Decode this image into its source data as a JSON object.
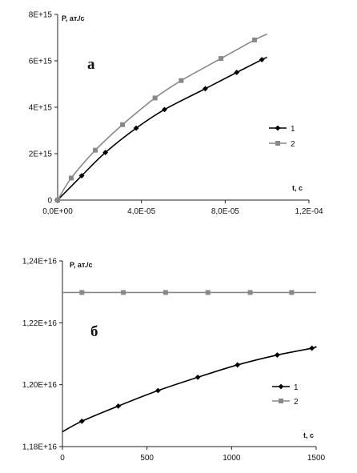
{
  "chart_data": [
    {
      "type": "line",
      "panel_label": "а",
      "ylabel": "P, ат./с",
      "xlabel": "t, c",
      "xlim": [
        0,
        0.00012
      ],
      "ylim": [
        0,
        8000000000000000.0
      ],
      "x_ticks": [
        "0,0E+00",
        "4,0E-05",
        "8,0E-05",
        "1,2E-04"
      ],
      "y_ticks": [
        "0",
        "2E+15",
        "4E+15",
        "6E+15",
        "8E+15"
      ],
      "grid": false,
      "legend_position": "center-right",
      "series": [
        {
          "name": "1",
          "color": "#000000",
          "marker": "diamond",
          "x": [
            0,
            1.15e-05,
            2.28e-05,
            3.75e-05,
            5.1e-05,
            7.05e-05,
            8.55e-05,
            9.75e-05
          ],
          "y": [
            0,
            1050000000000000.0,
            2050000000000000.0,
            3100000000000000.0,
            3900000000000000.0,
            4800000000000000.0,
            5500000000000000.0,
            6050000000000000.0
          ]
        },
        {
          "name": "2",
          "color": "#888888",
          "marker": "square",
          "x": [
            0,
            6.5e-06,
            1.8e-05,
            3.1e-05,
            4.65e-05,
            5.9e-05,
            7.8e-05,
            9.4e-05
          ],
          "y": [
            0,
            950000000000000.0,
            2150000000000000.0,
            3250000000000000.0,
            4400000000000000.0,
            5150000000000000.0,
            6100000000000000.0,
            6900000000000000.0
          ]
        }
      ],
      "curve_end": {
        "x": 0.0001,
        "series_1_y": 6150000000000000.0,
        "series_2_y": 7150000000000000.0
      }
    },
    {
      "type": "line",
      "panel_label": "б",
      "ylabel": "P, ат./с",
      "xlabel": "t, c",
      "xlim": [
        0,
        1500
      ],
      "ylim": [
        1.18e+16,
        1.24e+16
      ],
      "x_ticks": [
        "0",
        "500",
        "1000",
        "1500"
      ],
      "y_ticks": [
        "1,18E+16",
        "1,20E+16",
        "1,22E+16",
        "1,24E+16"
      ],
      "grid": false,
      "legend_position": "bottom-right",
      "series": [
        {
          "name": "1",
          "color": "#000000",
          "marker": "diamond",
          "x": [
            115,
            330,
            565,
            800,
            1035,
            1270,
            1475
          ],
          "y": [
            1.1882e+16,
            1.1931e+16,
            1.1981e+16,
            1.2024e+16,
            1.2064e+16,
            1.2096e+16,
            1.2118e+16
          ]
        },
        {
          "name": "2",
          "color": "#888888",
          "marker": "square",
          "x": [
            115,
            360,
            610,
            860,
            1110,
            1355
          ],
          "y": [
            1.2298e+16,
            1.2298e+16,
            1.2298e+16,
            1.2298e+16,
            1.2298e+16,
            1.2298e+16
          ]
        }
      ],
      "curve_range": {
        "x_start": 0,
        "x_end": 1500,
        "series_1_start_y": 1.1848e+16,
        "series_1_end_y": 1.2124e+16,
        "series_2_y": 1.2298e+16
      }
    }
  ]
}
